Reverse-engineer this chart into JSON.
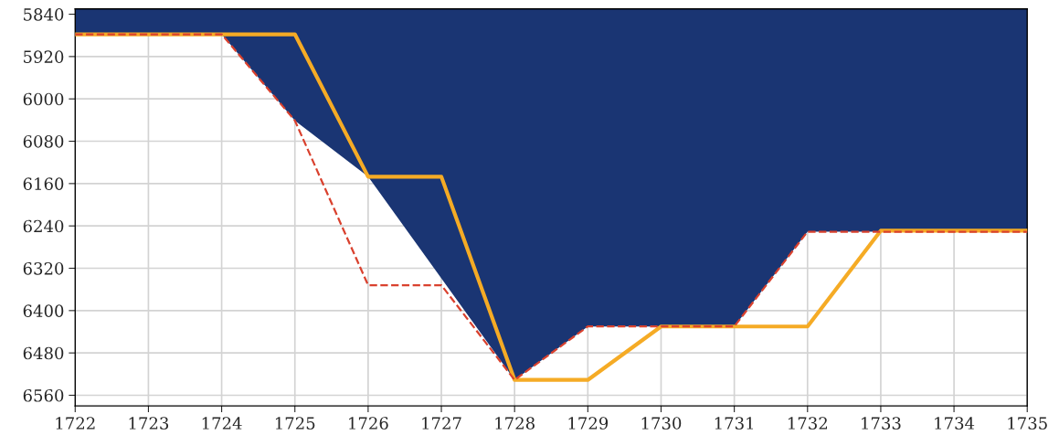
{
  "chart_data": {
    "type": "line",
    "x": [
      1722,
      1723,
      1724,
      1725,
      1726,
      1727,
      1728,
      1729,
      1730,
      1731,
      1732,
      1733,
      1734,
      1735
    ],
    "series": [
      {
        "type": "area",
        "color": "#1a3573",
        "x": [
          1722,
          1723,
          1724,
          1725,
          1726,
          1728,
          1729,
          1730,
          1731,
          1732,
          1733,
          1734,
          1735
        ],
        "values": [
          5878,
          5878,
          5878,
          6041,
          6147,
          6531,
          6430,
          6430,
          6430,
          6251,
          6251,
          6251,
          6251
        ]
      },
      {
        "color": "#f5ab25",
        "line_style": "solid",
        "values": [
          5878,
          5878,
          5878,
          5878,
          6147,
          6147,
          6531,
          6531,
          6430,
          6430,
          6430,
          6249,
          6249,
          6249
        ]
      },
      {
        "color": "#d9412e",
        "line_style": "dashed",
        "values": [
          5878,
          5878,
          5878,
          6041,
          6352,
          6352,
          6531,
          6430,
          6430,
          6430,
          6251,
          6251,
          6251,
          6251
        ]
      }
    ],
    "xlim": [
      1722,
      1735
    ],
    "xticks": [
      1722,
      1723,
      1724,
      1725,
      1726,
      1727,
      1728,
      1729,
      1730,
      1731,
      1732,
      1733,
      1734,
      1735
    ],
    "ylim": [
      6580,
      5830
    ],
    "yticks": [
      5840,
      5920,
      6000,
      6080,
      6160,
      6240,
      6320,
      6400,
      6480,
      6560
    ],
    "grid": true,
    "legend": false
  }
}
